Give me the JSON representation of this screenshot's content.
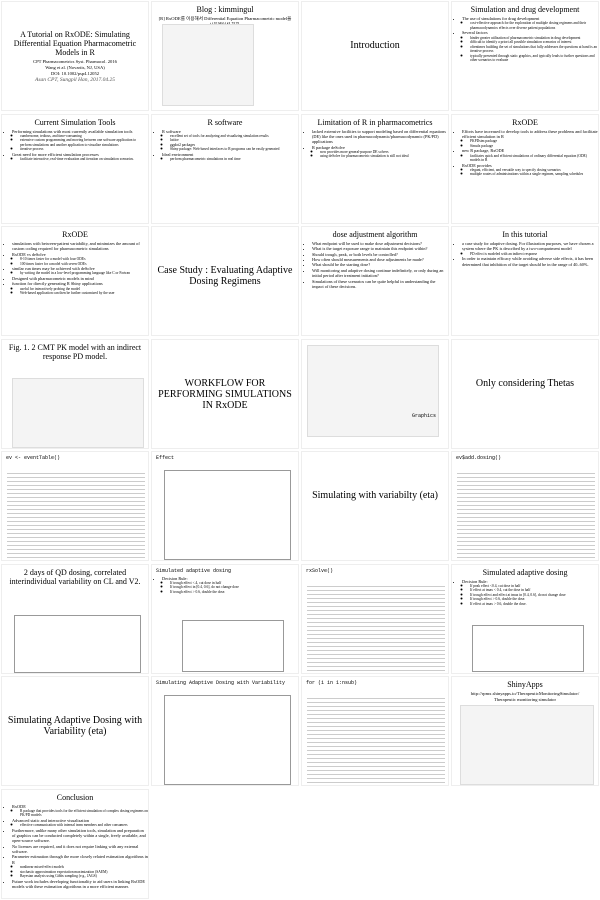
{
  "slides": [
    {
      "title": "A Tutorial on RxODE: Simulating Differential Equation Pharmacometric Models in R",
      "lines": [
        "CPT Pharmacometrics Syst. Pharmacol. 2016",
        "Wang et al. (Novartis, NJ, USA)",
        "DOI: 10.1002/psp4.12052"
      ],
      "author": "Asan CPT, Sungpil Han, 2017.04.25"
    },
    {
      "title": "Blog : kimmingul",
      "lines": [
        "[R] RxODE를 이용해서 Differential Equation Pharmacometric model을 시뮬레이션 하자."
      ]
    },
    {
      "title": "Introduction"
    },
    {
      "title": "Simulation and drug development",
      "bullets": [
        {
          "text": "The use of simulations for drug development",
          "sub": [
            "cost-effective approach for the exploration of multiple dosing regimens and their pharmacodynamics effects over diverse patient populations"
          ]
        },
        {
          "text": "Several factors",
          "sub": [
            "hinder greater utilization of pharmacometric simulation in drug development",
            "difficult to identify a priori all possible simulation scenarios of interest",
            "oftentimes building the set of simulations that fully addresses the questions at hand is an iterative process",
            "typically presented through static graphics, and typically leads to further questions and other scenarios to evaluate"
          ]
        }
      ]
    },
    {
      "title": "Current Simulation Tools",
      "bullets": [
        {
          "text": "Performing simulations with most currently available simulation tools",
          "sub": [
            "cumbersome, tedious, and time-consuming",
            "extensive custom programming and moving between one software application to perform simulations and another application to visualize simulations",
            "iterative process"
          ]
        },
        {
          "text": "Great need for more efficient simulation processes",
          "sub": [
            "facilitate interactive, real-time evaluation and iteration on simulation scenarios."
          ]
        }
      ]
    },
    {
      "title": "R software",
      "bullets": [
        {
          "text": "R software",
          "sub": [
            "excellent set of tools for analyzing and visualizing simulation results",
            "lattice",
            "ggplot2 packages",
            "Shiny package: Web-based interfaces to R programs can be easily generated"
          ]
        },
        {
          "text": "Ideal environment",
          "sub": [
            "perform pharmacometric simulations in real time"
          ]
        }
      ]
    },
    {
      "title": "Limitation of R in pharmacometrics",
      "bullets": [
        {
          "text": "lacked extensive facilities to support modeling based on differential equations (DE) like the ones used in pharmacodynamic/pharmacodynamic (PK/PD) applications"
        },
        {
          "text": "R package deSolve",
          "sub": [
            "now provides more general-purpose DE solvers",
            "using deSolve for pharmacometric simulation is still not ideal"
          ]
        }
      ]
    },
    {
      "title": "RxODE",
      "bullets": [
        {
          "text": "Efforts have increased to develop tools to address these problems and facilitate efficient simulation in R",
          "sub": [
            "PKPDsim package",
            "Simulx package"
          ]
        },
        {
          "text": "new R package, RxODE",
          "sub": [
            "facilitates quick and efficient simulations of ordinary differential equation (ODE) models in R"
          ]
        },
        {
          "text": "RxODE provides",
          "sub": [
            "elegant, efficient, and versatile way to specify dosing scenarios",
            "multiple routes of administrations within a single regimen, sampling schedules"
          ]
        }
      ]
    },
    {
      "title": "RxODE",
      "bullets": [
        {
          "text": "simulations with between-patient variability, and minimizes the amount of custom coding required for pharmacometric simulations"
        },
        {
          "text": "RxODE vs deSolve",
          "sub": [
            "8-10 times faster for a model with four ODEs",
            "100 times faster for a model with seven ODEs"
          ]
        },
        {
          "text": "similar run times may be achieved with deSolve",
          "sub": [
            "by writing the model in a low-level programming language like C or Fortran"
          ]
        },
        {
          "text": "Designed with pharmacometric models in mind"
        },
        {
          "text": "function for directly generating R Shiny applications",
          "sub": [
            "useful for interactively probing the model",
            "Web-based application can then be further customized by the user"
          ]
        }
      ]
    },
    {
      "title": "Case Study : Evaluating Adaptive Dosing Regimens"
    },
    {
      "title": "dose adjustment algorithm",
      "bullets": [
        {
          "text": "What endpoint will be used to make dose adjustment decisions?"
        },
        {
          "text": "What is the target exposure range to maintain this endpoint within?"
        },
        {
          "text": "Should trough, peak, or both levels be controlled?"
        },
        {
          "text": "How often should measurements and dose adjustments be made?"
        },
        {
          "text": "What should be the starting dose?"
        },
        {
          "text": "Will monitoring and adaptive dosing continue indefinitely, or only during an initial period after treatment initiation?"
        },
        {
          "text": "Simulations of these scenarios can be quite helpful in understanding the impact of these decisions."
        }
      ]
    },
    {
      "title": "In this tutorial",
      "bullets": [
        {
          "text": "a case study for adaptive dosing. For illustration purposes, we have chosen a system where the PK is described by a two-compartment model",
          "sub": [
            "PD effect is modeled with an indirect response"
          ]
        },
        {
          "text": "In order to maintain efficacy while avoiding adverse side effects, it has been determined that inhibition of the target should be in the range of 40–60%."
        }
      ]
    },
    {
      "title": "Fig. 1. 2 CMT PK model with an indirect response PD model."
    },
    {
      "title": "WORKFLOW FOR PERFORMING SIMULATIONS IN RxODE"
    },
    {
      "title": "Graphics"
    },
    {
      "title": "Only considering Thetas"
    },
    {
      "title": "ev <- eventTable()"
    },
    {
      "title": "Effect"
    },
    {
      "title": "Simulating with variabilty (eta)"
    },
    {
      "title": "ev$add.dosing()"
    },
    {
      "title": "2 days of QD dosing, correlated interindividual variability on CL and V2."
    },
    {
      "title": "Simulated adaptive dosing",
      "bullets": [
        {
          "text": "Decision Rule:",
          "sub": [
            "If trough effect <.4, cut dose in half",
            "If trough effect in [0.4, 0.6], do not change dose",
            "If trough effect > 0.6, double the dose."
          ]
        }
      ]
    },
    {
      "title": "rxSolve()"
    },
    {
      "title": "Simulated adaptive dosing",
      "bullets": [
        {
          "text": "Decision Rule:",
          "sub": [
            "If peak effect <0.4, cut dose in half",
            "If effect at tmax < 0.4, cut the dose in half",
            "If trough effect and effect at tmax in [0.4, 0.6], do not change dose",
            "If trough effect > 0.6, double the dose.",
            "If effect at tmax > 0.6, double the dose."
          ]
        }
      ]
    },
    {
      "title": "Simulating Adaptive Dosing with Variability (eta)"
    },
    {
      "title": "Simulating Adaptive Dosing with Variability"
    },
    {
      "title": "for (i in 1:nsub)"
    },
    {
      "title": "ShinyApps",
      "lines": [
        "http://rpmx.shinyapps.io/TherapeuticMonitoringSimulator/",
        "Therapeutic monitoring simulator"
      ]
    },
    {
      "title": "Conclusion",
      "bullets": [
        {
          "text": "RxODE",
          "sub": [
            "R package that provides tools for the efficient simulation of complex dosing regimens on PK/PD models"
          ]
        },
        {
          "text": "Advanced static and interactive visualization",
          "sub": [
            "effective communication with internal team members and other consumers"
          ]
        },
        {
          "text": "Furthermore, unlike many other simulation tools, simulation and preparation of graphics can be conducted completely within a single, freely available, and open-source software."
        },
        {
          "text": "No licenses are required, and it does not require linking with any external software."
        },
        {
          "text": "Parameter estimation through the more closely related estimation algorithms in R",
          "sub": [
            "nonlinear mixed-effect models",
            "stochastic approximation expectation maximization (SAEM)",
            "Bayesian analysis using Gibbs sampling (e.g., JAGS)"
          ]
        },
        {
          "text": "Future work includes developing functionality to aid users in linking RxODE models with these estimation algorithms in a more efficient manner."
        }
      ]
    }
  ]
}
